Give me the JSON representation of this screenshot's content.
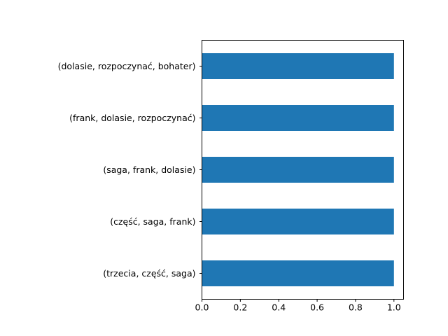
{
  "chart_data": {
    "type": "bar",
    "orientation": "horizontal",
    "categories": [
      "(dolasie, rozpoczynać, bohater)",
      "(frank, dolasie, rozpoczynać)",
      "(saga, frank, dolasie)",
      "(część, saga, frank)",
      "(trzecia, część, saga)"
    ],
    "values": [
      1,
      1,
      1,
      1,
      1
    ],
    "x_ticks": [
      "0.0",
      "0.2",
      "0.4",
      "0.6",
      "0.8",
      "1.0"
    ],
    "xlim": [
      0,
      1.05
    ],
    "title": "",
    "xlabel": "",
    "ylabel": "",
    "grid": false,
    "legend": "none",
    "bar_color": "#1f77b4"
  }
}
